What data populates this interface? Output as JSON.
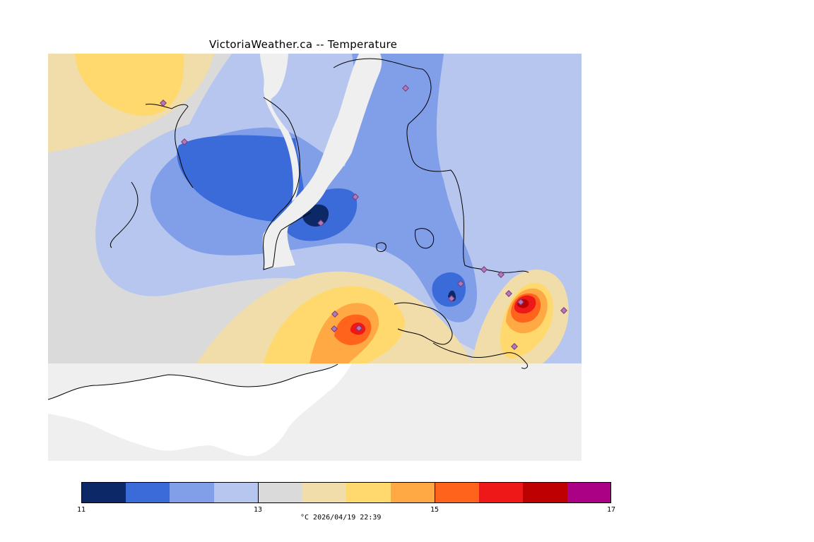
{
  "map": {
    "title": "VictoriaWeather.ca -- Temperature",
    "variable": "Temperature",
    "units": "°C",
    "timestamp": "2026/04/19 22:39",
    "caption": "°C  2026/04/19 22:39",
    "no_data_color": "#efefef",
    "station_marker_color": "#b07ab8"
  },
  "legend": {
    "min": 11,
    "max": 17,
    "tick_labels": [
      "11",
      "13",
      "15",
      "17"
    ],
    "bins": [
      {
        "from": 11.0,
        "to": 11.5,
        "color": "#0c2866"
      },
      {
        "from": 11.5,
        "to": 12.0,
        "color": "#3a6bd8"
      },
      {
        "from": 12.0,
        "to": 12.5,
        "color": "#809fe8"
      },
      {
        "from": 12.5,
        "to": 13.0,
        "color": "#b7c6ef"
      },
      {
        "from": 13.0,
        "to": 13.5,
        "color": "#dadada"
      },
      {
        "from": 13.5,
        "to": 14.0,
        "color": "#f1dda9"
      },
      {
        "from": 14.0,
        "to": 14.5,
        "color": "#ffd86e"
      },
      {
        "from": 14.5,
        "to": 15.0,
        "color": "#ffa945"
      },
      {
        "from": 15.0,
        "to": 15.5,
        "color": "#ff631c"
      },
      {
        "from": 15.5,
        "to": 16.0,
        "color": "#ee1818"
      },
      {
        "from": 16.0,
        "to": 16.5,
        "color": "#bd0000"
      },
      {
        "from": 16.5,
        "to": 17.0,
        "color": "#ab0285"
      }
    ]
  }
}
